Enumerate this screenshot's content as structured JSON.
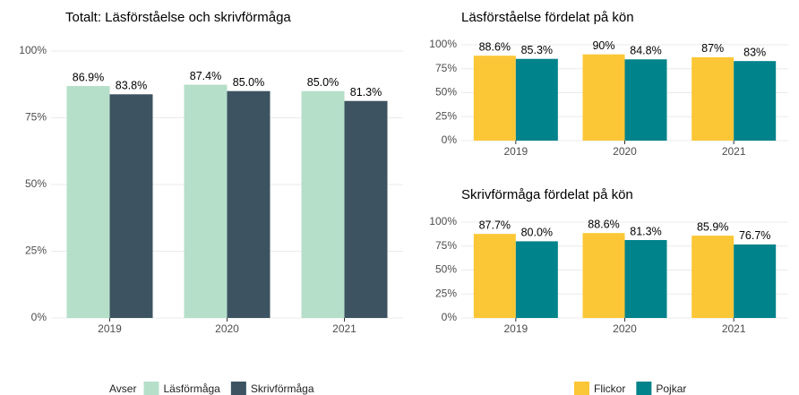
{
  "chart_data": [
    {
      "type": "bar",
      "title": "Totalt: Läsförståelse och skrivförmåga",
      "categories": [
        "2019",
        "2020",
        "2021"
      ],
      "series": [
        {
          "name": "Läsförmåga",
          "color": "#b5dfc9",
          "values": [
            86.9,
            87.4,
            85.0
          ],
          "value_labels": [
            "86.9%",
            "87.4%",
            "85.0%"
          ]
        },
        {
          "name": "Skrivförmåga",
          "color": "#3d5361",
          "values": [
            83.8,
            85.0,
            81.3
          ],
          "value_labels": [
            "83.8%",
            "85.0%",
            "81.3%"
          ]
        }
      ],
      "legend_title": "Avser",
      "ylim": [
        0,
        100
      ],
      "yticks": [
        {
          "value": 0,
          "label": "0%"
        },
        {
          "value": 25,
          "label": "25%"
        },
        {
          "value": 50,
          "label": "50%"
        },
        {
          "value": 75,
          "label": "75%"
        },
        {
          "value": 100,
          "label": "100%"
        }
      ],
      "grid": true,
      "legend": "bottom"
    },
    {
      "type": "bar",
      "title": "Läsförståelse fördelat på kön",
      "categories": [
        "2019",
        "2020",
        "2021"
      ],
      "series": [
        {
          "name": "Flickor",
          "color": "#fcc736",
          "values": [
            88.6,
            90,
            87
          ],
          "value_labels": [
            "88.6%",
            "90%",
            "87%"
          ]
        },
        {
          "name": "Pojkar",
          "color": "#00838b",
          "values": [
            85.3,
            84.8,
            83
          ],
          "value_labels": [
            "85.3%",
            "84.8%",
            "83%"
          ]
        }
      ],
      "ylim": [
        0,
        100
      ],
      "yticks": [
        {
          "value": 0,
          "label": "0%"
        },
        {
          "value": 25,
          "label": "25%"
        },
        {
          "value": 50,
          "label": "50%"
        },
        {
          "value": 75,
          "label": "75%"
        },
        {
          "value": 100,
          "label": "100%"
        }
      ],
      "grid": true,
      "legend": "bottom"
    },
    {
      "type": "bar",
      "title": "Skrivförmåga fördelat på kön",
      "categories": [
        "2019",
        "2020",
        "2021"
      ],
      "series": [
        {
          "name": "Flickor",
          "color": "#fcc736",
          "values": [
            87.7,
            88.6,
            85.9
          ],
          "value_labels": [
            "87.7%",
            "88.6%",
            "85.9%"
          ]
        },
        {
          "name": "Pojkar",
          "color": "#00838b",
          "values": [
            80.0,
            81.3,
            76.7
          ],
          "value_labels": [
            "80.0%",
            "81.3%",
            "76.7%"
          ]
        }
      ],
      "ylim": [
        0,
        100
      ],
      "yticks": [
        {
          "value": 0,
          "label": "0%"
        },
        {
          "value": 25,
          "label": "25%"
        },
        {
          "value": 50,
          "label": "50%"
        },
        {
          "value": 75,
          "label": "75%"
        },
        {
          "value": 100,
          "label": "100%"
        }
      ],
      "grid": true
    }
  ]
}
